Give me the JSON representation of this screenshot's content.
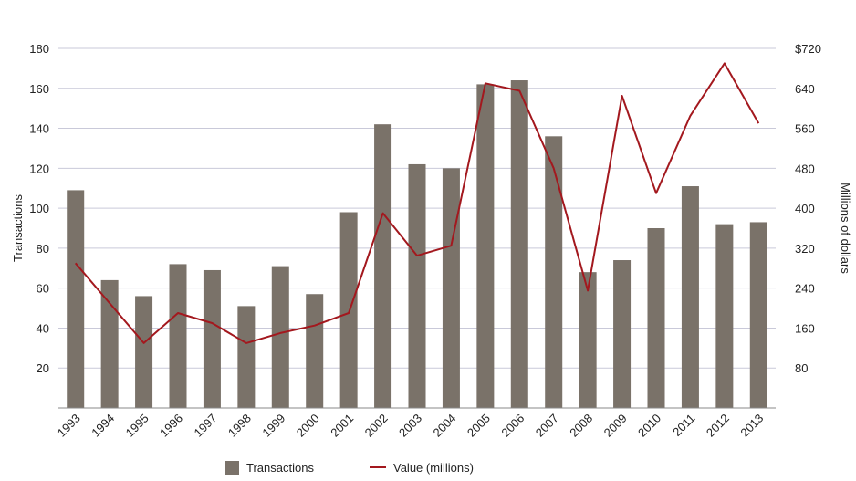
{
  "chart_data": {
    "type": "bar",
    "categories": [
      "1993",
      "1994",
      "1995",
      "1996",
      "1997",
      "1998",
      "1999",
      "2000",
      "2001",
      "2002",
      "2003",
      "2004",
      "2005",
      "2006",
      "2007",
      "2008",
      "2009",
      "2010",
      "2011",
      "2012",
      "2013"
    ],
    "series": [
      {
        "name": "Transactions",
        "type": "bar",
        "axis": "left",
        "color": "#7a7269",
        "values": [
          109,
          64,
          56,
          72,
          69,
          51,
          71,
          57,
          98,
          142,
          122,
          120,
          162,
          164,
          136,
          68,
          74,
          90,
          111,
          92,
          93
        ]
      },
      {
        "name": "Value (millions)",
        "type": "line",
        "axis": "right",
        "color": "#a3181e",
        "values": [
          290,
          210,
          130,
          190,
          170,
          130,
          150,
          165,
          190,
          390,
          305,
          325,
          650,
          635,
          480,
          235,
          625,
          430,
          585,
          690,
          570
        ]
      }
    ],
    "ylabel": "Transactions",
    "y2label": "Millions of dollars",
    "ylim": [
      0,
      180
    ],
    "y2lim": [
      0,
      720
    ],
    "yticks": [
      "20",
      "40",
      "60",
      "80",
      "100",
      "120",
      "140",
      "160",
      "180"
    ],
    "y2ticks": [
      "80",
      "160",
      "240",
      "320",
      "400",
      "480",
      "560",
      "640",
      "$720"
    ],
    "gridlines": true,
    "legend": {
      "position": "bottom",
      "items": [
        "Transactions",
        "Value (millions)"
      ]
    }
  }
}
